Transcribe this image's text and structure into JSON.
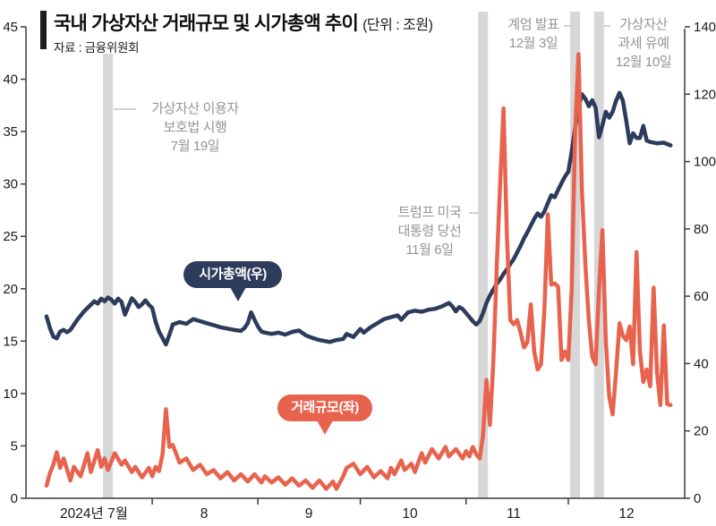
{
  "title": {
    "text": "국내 가상자산 거래규모 및 시가총액 추이",
    "unit": "(단위 : 조원)",
    "source": "자료 : 금융위원회"
  },
  "legend": {
    "market_cap": "시가총액(우)",
    "volume": "거래규모(좌)"
  },
  "annotations": [
    {
      "lines": [
        "가상자산 이용자",
        "보호법 시행",
        "7월 19일"
      ]
    },
    {
      "lines": [
        "트럼프 미국",
        "대통령 당선",
        "11월 6일"
      ]
    },
    {
      "lines": [
        "계엄 발표",
        "12월 3일"
      ]
    },
    {
      "lines": [
        "가상자산",
        "과세 유예",
        "12월 10일"
      ]
    }
  ],
  "colors": {
    "market_cap_line": "#2d3b5c",
    "volume_line": "#e8634e",
    "event_band": "#d7d7d7",
    "annotation_text": "#949494",
    "connector": "#c3c3c3",
    "axis_line": "#3c3c3c",
    "axis_text": "#1a1a1a"
  },
  "chart_data": {
    "type": "line",
    "title": "국내 가상자산 거래규모 및 시가총액 추이",
    "unit": "조원",
    "grid": false,
    "x_axis": {
      "start": "2024-07-01",
      "end": "2024-12-31",
      "labels": [
        "2024년 7월",
        "8",
        "9",
        "10",
        "11",
        "12"
      ]
    },
    "y_left": {
      "name": "거래규모",
      "min": 0,
      "max": 45,
      "ticks": [
        0,
        5,
        10,
        15,
        20,
        25,
        30,
        35,
        40,
        45
      ]
    },
    "y_right": {
      "name": "시가총액",
      "min": 0,
      "max": 140,
      "ticks": [
        0,
        20,
        40,
        60,
        80,
        100,
        120,
        140
      ]
    },
    "events": [
      {
        "name": "가상자산 이용자 보호법 시행",
        "date": "2024-07-19",
        "day": 18
      },
      {
        "name": "트럼프 미국 대통령 당선",
        "date": "2024-11-06",
        "day": 128
      },
      {
        "name": "계엄 발표",
        "date": "2024-12-03",
        "day": 155
      },
      {
        "name": "가상자산 과세 유예",
        "date": "2024-12-10",
        "day": 162
      }
    ],
    "series": [
      {
        "name": "시가총액(우)",
        "axis": "right",
        "color": "#2d3b5c",
        "points": [
          [
            0,
            54
          ],
          [
            1,
            50.5
          ],
          [
            2,
            48
          ],
          [
            3,
            47.5
          ],
          [
            4,
            49.5
          ],
          [
            5,
            50
          ],
          [
            6,
            49.3
          ],
          [
            7,
            50
          ],
          [
            8,
            51.5
          ],
          [
            9,
            53
          ],
          [
            11,
            55.5
          ],
          [
            13,
            57.5
          ],
          [
            14,
            58.5
          ],
          [
            15,
            57.8
          ],
          [
            16,
            59.3
          ],
          [
            17,
            58.5
          ],
          [
            18,
            59.6
          ],
          [
            19,
            59
          ],
          [
            20,
            57.8
          ],
          [
            21,
            59.3
          ],
          [
            22,
            58.3
          ],
          [
            23,
            54.5
          ],
          [
            24,
            57
          ],
          [
            25,
            59.4
          ],
          [
            26,
            58.3
          ],
          [
            27,
            56.8
          ],
          [
            28,
            57.6
          ],
          [
            29,
            58.8
          ],
          [
            30,
            57.5
          ],
          [
            31,
            56.5
          ],
          [
            32,
            52.4
          ],
          [
            33,
            49.5
          ],
          [
            35,
            45.7
          ],
          [
            36,
            48.5
          ],
          [
            37,
            51.6
          ],
          [
            39,
            52.3
          ],
          [
            41,
            51.8
          ],
          [
            43,
            53.2
          ],
          [
            45,
            52.6
          ],
          [
            47,
            52
          ],
          [
            49,
            51.4
          ],
          [
            51,
            50.8
          ],
          [
            53,
            50.4
          ],
          [
            55,
            50
          ],
          [
            57,
            49.7
          ],
          [
            58,
            50.5
          ],
          [
            59,
            52
          ],
          [
            60,
            55.2
          ],
          [
            61,
            53
          ],
          [
            62,
            51
          ],
          [
            63,
            49.5
          ],
          [
            64,
            49.2
          ],
          [
            66,
            48.8
          ],
          [
            68,
            49.2
          ],
          [
            70,
            48.6
          ],
          [
            72,
            49.4
          ],
          [
            74,
            49.8
          ],
          [
            76,
            48.4
          ],
          [
            78,
            47.6
          ],
          [
            80,
            47
          ],
          [
            82,
            46.6
          ],
          [
            83,
            46.4
          ],
          [
            85,
            47
          ],
          [
            87,
            47.3
          ],
          [
            88,
            48.8
          ],
          [
            90,
            47.9
          ],
          [
            92,
            50.3
          ],
          [
            93,
            49.2
          ],
          [
            95,
            50.8
          ],
          [
            97,
            52
          ],
          [
            99,
            53.2
          ],
          [
            101,
            53.8
          ],
          [
            103,
            54.3
          ],
          [
            104,
            53
          ],
          [
            106,
            55.2
          ],
          [
            108,
            55.7
          ],
          [
            110,
            55.4
          ],
          [
            112,
            56
          ],
          [
            114,
            56.3
          ],
          [
            116,
            57
          ],
          [
            118,
            58
          ],
          [
            119,
            57
          ],
          [
            120,
            55.5
          ],
          [
            121,
            56.8
          ],
          [
            122,
            56.2
          ],
          [
            123,
            55
          ],
          [
            124,
            53.8
          ],
          [
            125,
            52.6
          ],
          [
            126,
            51.6
          ],
          [
            127,
            52.6
          ],
          [
            128,
            55
          ],
          [
            129,
            58
          ],
          [
            130,
            60.2
          ],
          [
            131,
            62
          ],
          [
            132,
            63.6
          ],
          [
            133,
            65
          ],
          [
            134,
            66.6
          ],
          [
            135,
            68
          ],
          [
            136,
            69.6
          ],
          [
            137,
            71
          ],
          [
            138,
            73
          ],
          [
            139,
            75
          ],
          [
            140,
            77.2
          ],
          [
            141,
            79
          ],
          [
            142,
            81
          ],
          [
            143,
            83
          ],
          [
            144,
            84.6
          ],
          [
            145,
            83.6
          ],
          [
            146,
            85.2
          ],
          [
            147,
            87.6
          ],
          [
            148,
            90
          ],
          [
            149,
            89.4
          ],
          [
            150,
            91.6
          ],
          [
            151,
            93.6
          ],
          [
            152,
            95.5
          ],
          [
            153,
            97
          ],
          [
            154,
            103
          ],
          [
            155,
            110
          ],
          [
            156,
            116
          ],
          [
            157,
            120
          ],
          [
            158,
            118.6
          ],
          [
            159,
            116.4
          ],
          [
            160,
            118.2
          ],
          [
            161,
            116
          ],
          [
            162,
            107.2
          ],
          [
            163,
            110.8
          ],
          [
            164,
            114.8
          ],
          [
            165,
            113
          ],
          [
            166,
            114.8
          ],
          [
            167,
            118
          ],
          [
            168,
            120.4
          ],
          [
            169,
            118
          ],
          [
            170,
            112
          ],
          [
            171,
            105.4
          ],
          [
            172,
            108.4
          ],
          [
            173,
            107
          ],
          [
            174,
            107
          ],
          [
            175,
            110.6
          ],
          [
            176,
            106.2
          ],
          [
            177,
            105.8
          ],
          [
            179,
            105.4
          ],
          [
            181,
            105.6
          ],
          [
            183,
            104.8
          ]
        ]
      },
      {
        "name": "거래규모(좌)",
        "axis": "left",
        "color": "#e8634e",
        "points": [
          [
            0,
            1.2
          ],
          [
            1,
            2.4
          ],
          [
            2,
            3.2
          ],
          [
            3,
            4.4
          ],
          [
            4,
            2.9
          ],
          [
            5,
            3.8
          ],
          [
            7,
            1.7
          ],
          [
            8,
            3
          ],
          [
            10,
            2.1
          ],
          [
            12,
            4.3
          ],
          [
            13,
            2.5
          ],
          [
            15,
            4.6
          ],
          [
            16,
            3
          ],
          [
            17,
            3.8
          ],
          [
            18,
            2.7
          ],
          [
            20,
            4.3
          ],
          [
            22,
            3.2
          ],
          [
            23,
            3.6
          ],
          [
            25,
            2.5
          ],
          [
            26,
            3
          ],
          [
            28,
            2
          ],
          [
            30,
            2.9
          ],
          [
            31,
            2.1
          ],
          [
            32,
            3
          ],
          [
            33,
            2.6
          ],
          [
            34,
            4.2
          ],
          [
            35,
            8.5
          ],
          [
            36,
            4.9
          ],
          [
            37,
            5.1
          ],
          [
            39,
            3.4
          ],
          [
            41,
            3.8
          ],
          [
            43,
            2.7
          ],
          [
            45,
            3.2
          ],
          [
            47,
            2.3
          ],
          [
            49,
            2.7
          ],
          [
            51,
            1.9
          ],
          [
            53,
            2.5
          ],
          [
            55,
            1.7
          ],
          [
            57,
            2.3
          ],
          [
            59,
            1.6
          ],
          [
            61,
            2.3
          ],
          [
            63,
            1.5
          ],
          [
            64,
            2.1
          ],
          [
            66,
            1.5
          ],
          [
            68,
            2
          ],
          [
            70,
            1.3
          ],
          [
            72,
            1.9
          ],
          [
            74,
            1.2
          ],
          [
            76,
            1.7
          ],
          [
            78,
            1
          ],
          [
            80,
            1.7
          ],
          [
            82,
            0.9
          ],
          [
            84,
            1.6
          ],
          [
            85,
            0.9
          ],
          [
            87,
            2.1
          ],
          [
            88,
            2.9
          ],
          [
            90,
            3.3
          ],
          [
            92,
            2.3
          ],
          [
            94,
            3
          ],
          [
            96,
            2
          ],
          [
            98,
            2.6
          ],
          [
            100,
            1.9
          ],
          [
            101,
            2.9
          ],
          [
            102,
            2.3
          ],
          [
            104,
            3.6
          ],
          [
            105,
            2.7
          ],
          [
            107,
            3.3
          ],
          [
            108,
            2.5
          ],
          [
            110,
            4.3
          ],
          [
            111,
            3.4
          ],
          [
            113,
            4.7
          ],
          [
            115,
            3.8
          ],
          [
            117,
            4.9
          ],
          [
            118,
            4
          ],
          [
            120,
            4.7
          ],
          [
            122,
            3.8
          ],
          [
            123,
            4.5
          ],
          [
            124,
            4
          ],
          [
            125,
            4.9
          ],
          [
            126,
            4.2
          ],
          [
            127,
            3.8
          ],
          [
            128,
            6
          ],
          [
            129,
            11.3
          ],
          [
            130,
            7
          ],
          [
            131,
            13
          ],
          [
            132,
            22
          ],
          [
            133,
            30
          ],
          [
            134,
            37.2
          ],
          [
            135,
            25
          ],
          [
            136,
            17
          ],
          [
            137,
            16.6
          ],
          [
            138,
            17
          ],
          [
            139,
            15.8
          ],
          [
            140,
            14.4
          ],
          [
            141,
            14.9
          ],
          [
            142,
            18.5
          ],
          [
            143,
            14
          ],
          [
            144,
            12.3
          ],
          [
            145,
            12.8
          ],
          [
            146,
            18
          ],
          [
            147,
            27.1
          ],
          [
            148,
            20.4
          ],
          [
            149,
            20.5
          ],
          [
            150,
            20.2
          ],
          [
            151,
            13.2
          ],
          [
            152,
            14
          ],
          [
            153,
            13.2
          ],
          [
            154,
            20
          ],
          [
            155,
            35
          ],
          [
            156,
            42.4
          ],
          [
            157,
            29.4
          ],
          [
            158,
            22.2
          ],
          [
            159,
            17
          ],
          [
            160,
            13.5
          ],
          [
            161,
            12.8
          ],
          [
            162,
            20
          ],
          [
            163,
            25.6
          ],
          [
            164,
            15
          ],
          [
            165,
            9.7
          ],
          [
            166,
            8
          ],
          [
            167,
            12
          ],
          [
            168,
            16.7
          ],
          [
            169,
            15.5
          ],
          [
            170,
            15.1
          ],
          [
            171,
            16.4
          ],
          [
            172,
            12.8
          ],
          [
            173,
            23.5
          ],
          [
            174,
            14
          ],
          [
            175,
            11.1
          ],
          [
            176,
            12.3
          ],
          [
            177,
            10.7
          ],
          [
            178,
            20.1
          ],
          [
            179,
            12
          ],
          [
            180,
            8.9
          ],
          [
            181,
            16.5
          ],
          [
            182,
            9
          ],
          [
            183,
            8.9
          ]
        ]
      }
    ]
  }
}
